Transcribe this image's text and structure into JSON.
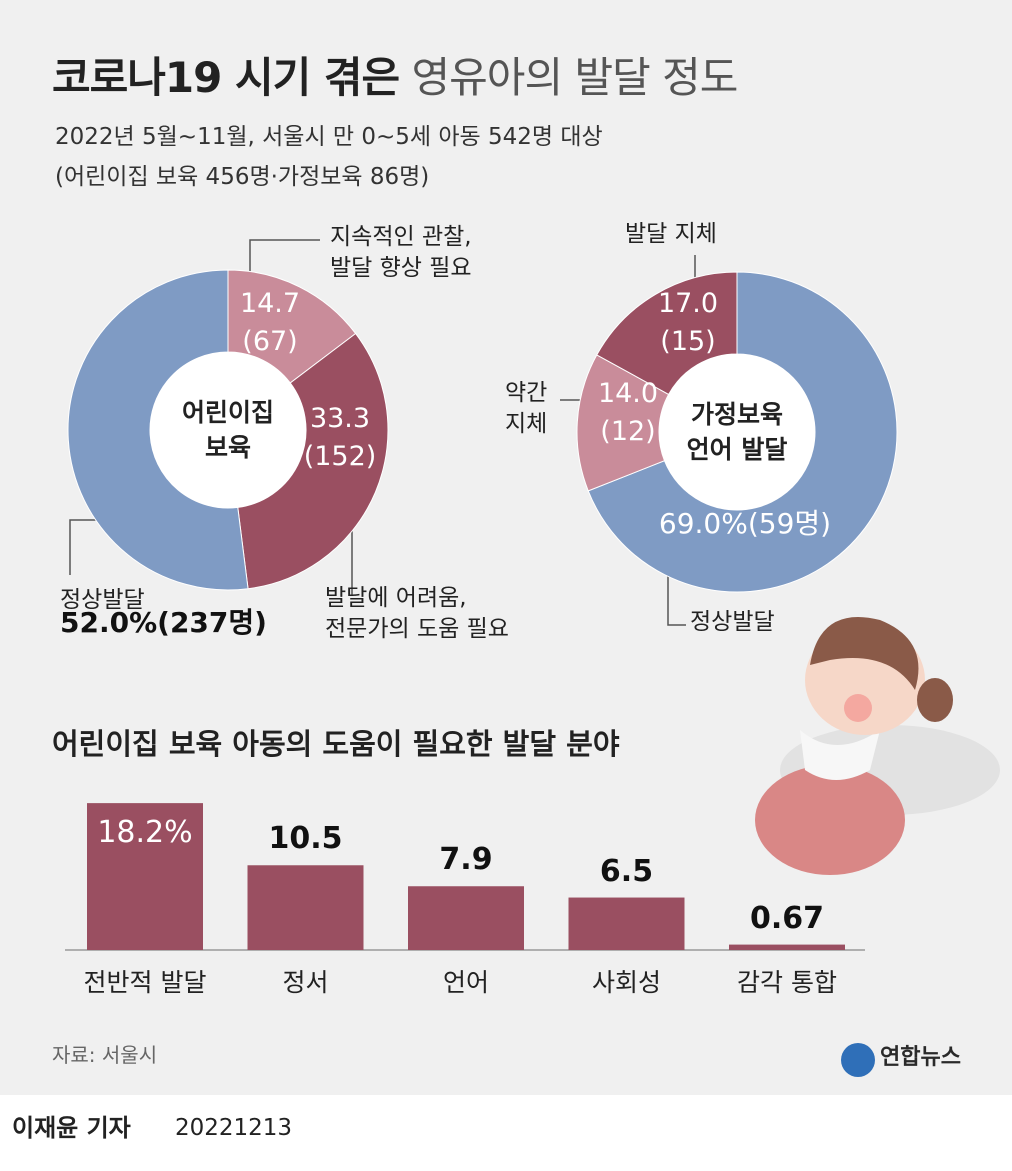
{
  "header": {
    "title_bold": "코로나19 시기 겪은",
    "title_light": "영유아의 발달 정도",
    "subtitle": [
      "2022년 5월~11월, 서울시 만 0~5세 아동 542명 대상",
      "(어린이집 보육 456명·가정보육 86명)"
    ]
  },
  "chart_data": [
    {
      "type": "donut",
      "center_label": "어린이집\n보육",
      "categories": [
        "지속적인 관찰,\n발달 향상 필요",
        "발달에 어려움,\n전문가의 도움 필요",
        "정상발달"
      ],
      "values": [
        14.7,
        33.3,
        52.0
      ],
      "value_labels": [
        "14.7",
        "33.3",
        "52.0%"
      ],
      "count_labels": [
        "(67)",
        "(152)",
        "(237명)"
      ],
      "colors": [
        "#c98c9a",
        "#9a4f61",
        "#7f9bc4"
      ]
    },
    {
      "type": "donut",
      "center_label": "가정보육\n언어 발달",
      "categories": [
        "정상발달",
        "약간\n지체",
        "발달 지체"
      ],
      "values": [
        69.0,
        14.0,
        17.0
      ],
      "value_labels": [
        "69.0%",
        "14.0",
        "17.0"
      ],
      "count_labels": [
        "(59명)",
        "(12)",
        "(15)"
      ],
      "colors": [
        "#7f9bc4",
        "#c98c9a",
        "#9a4f61"
      ]
    },
    {
      "type": "bar",
      "title": "어린이집 보육 아동의 도움이 필요한 발달 분야",
      "categories": [
        "전반적 발달",
        "정서",
        "언어",
        "사회성",
        "감각 통합"
      ],
      "values": [
        18.2,
        10.5,
        7.9,
        6.5,
        0.67
      ],
      "value_labels": [
        "18.2%",
        "10.5",
        "7.9",
        "6.5",
        "0.67"
      ],
      "color": "#9a4f61"
    }
  ],
  "footer": {
    "source": "자료: 서울시",
    "logo": "연합뉴스",
    "reporter": "이재윤 기자",
    "date": "20221213"
  }
}
